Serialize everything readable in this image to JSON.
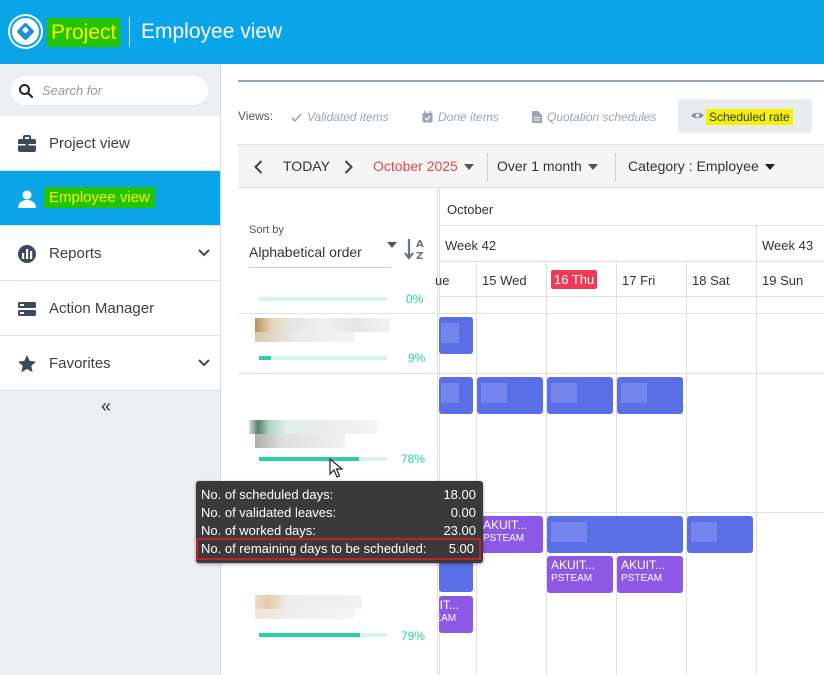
{
  "app": {
    "name": "Project",
    "page_title": "Employee view"
  },
  "search": {
    "placeholder": "Search for"
  },
  "sidebar": {
    "items": [
      {
        "label": "Project view",
        "icon": "briefcase-icon"
      },
      {
        "label": "Employee view",
        "icon": "user-icon"
      },
      {
        "label": "Reports",
        "icon": "chart-icon"
      },
      {
        "label": "Action Manager",
        "icon": "server-icon"
      },
      {
        "label": "Favorites",
        "icon": "star-icon"
      }
    ],
    "collapse": "«"
  },
  "views": {
    "label": "Views:",
    "items": [
      "Validated items",
      "Done items",
      "Quotation schedules"
    ],
    "active": "Scheduled rate"
  },
  "toolbar": {
    "today": "TODAY",
    "month": "October 2025",
    "range": "Over 1 month",
    "category": "Category : Employee"
  },
  "sort": {
    "label": "Sort by",
    "value": "Alphabetical order"
  },
  "calendar": {
    "month": "October",
    "weeks": [
      "Week 42",
      "Week 43"
    ],
    "days": [
      "ue",
      "15 Wed",
      "16 Thu",
      "17 Fri",
      "18 Sat",
      "19 Sun"
    ]
  },
  "employees": [
    {
      "pct": "0%",
      "fill": 0
    },
    {
      "pct": "9%",
      "fill": 0.09
    },
    {
      "pct": "78%",
      "fill": 0.78
    },
    {
      "pct": "79%",
      "fill": 0.79
    }
  ],
  "tasks": {
    "label": "AKUIT...",
    "team": "PSTEAM"
  },
  "tooltip": {
    "rows": [
      {
        "label": "No. of scheduled days:",
        "value": "18.00"
      },
      {
        "label": "No. of validated leaves:",
        "value": "0.00"
      },
      {
        "label": "No. of worked days:",
        "value": "23.00"
      },
      {
        "label": "No. of remaining days to be scheduled:",
        "value": "5.00"
      }
    ]
  },
  "colors": {
    "topbar": "#0aa5e8",
    "highlight_green": "#22c400",
    "highlight_yellow": "#f5f200",
    "today": "#f03a55",
    "task_blue": "#5a6ee6",
    "task_purple": "#8c58e5",
    "progress": "#2ecfa6",
    "tooltip_border": "#c2202a"
  }
}
